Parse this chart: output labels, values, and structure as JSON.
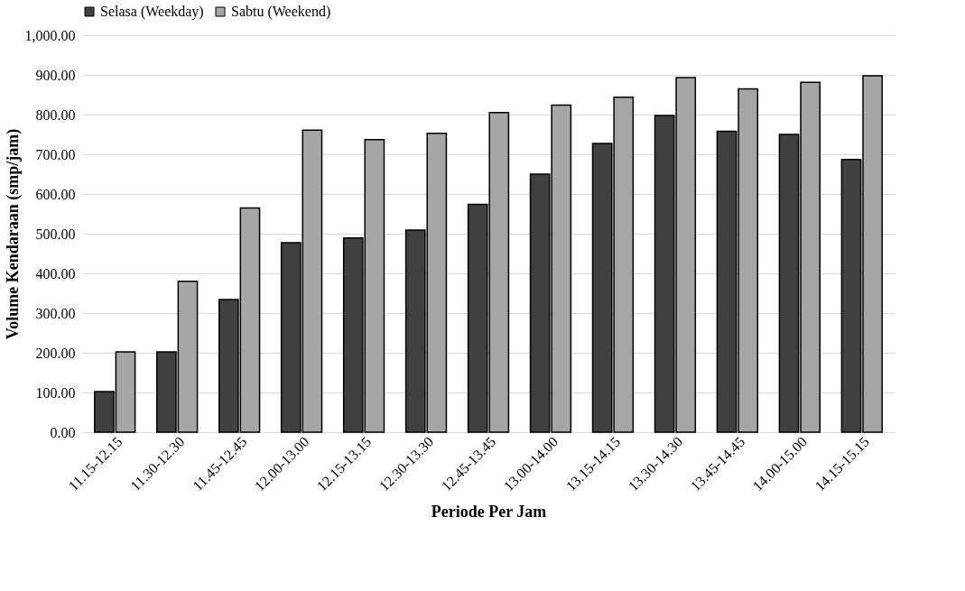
{
  "chart_data": {
    "type": "bar",
    "xlabel": "Periode Per Jam",
    "ylabel": "Volume Kendaraan (smp/jam)",
    "categories": [
      "11.15-12.15",
      "11.30-12.30",
      "11.45-12.45",
      "12.00-13.00",
      "12.15-13.15",
      "12.30-13.30",
      "12.45-13.45",
      "13.00-14.00",
      "13.15-14.15",
      "13.30-14.30",
      "13.45-14.45",
      "14.00-15.00",
      "14.15-15.15"
    ],
    "series": [
      {
        "name": "Selasa (Weekday)",
        "color": "#404040",
        "values": [
          102,
          202,
          334,
          477,
          489,
          509,
          574,
          650,
          727,
          798,
          758,
          750,
          687
        ]
      },
      {
        "name": "Sabtu (Weekend)",
        "color": "#a6a6a6",
        "values": [
          202,
          380,
          565,
          761,
          737,
          753,
          805,
          824,
          844,
          893,
          865,
          881,
          898
        ]
      }
    ],
    "ylim": [
      0,
      1000
    ],
    "yticks": [
      {
        "value": 0,
        "label": "0.00"
      },
      {
        "value": 100,
        "label": "100.00"
      },
      {
        "value": 200,
        "label": "200.00"
      },
      {
        "value": 300,
        "label": "300.00"
      },
      {
        "value": 400,
        "label": "400.00"
      },
      {
        "value": 500,
        "label": "500.00"
      },
      {
        "value": 600,
        "label": "600.00"
      },
      {
        "value": 700,
        "label": "700.00"
      },
      {
        "value": 800,
        "label": "800.00"
      },
      {
        "value": 900,
        "label": "900.00"
      },
      {
        "value": 1000,
        "label": "1,000.00"
      }
    ],
    "grid": "y",
    "legend": "top"
  }
}
